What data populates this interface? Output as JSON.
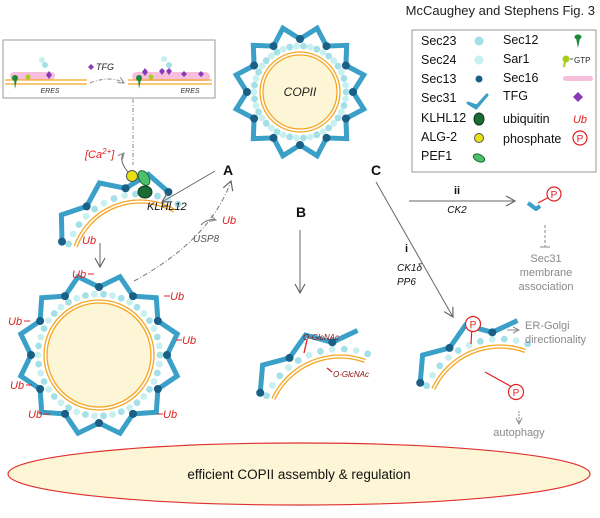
{
  "title": "McCaughey and Stephens Fig. 3",
  "legend": {
    "left": [
      {
        "label": "Sec23",
        "icon": "light-cyan-dot"
      },
      {
        "label": "Sec24",
        "icon": "pale-cyan-dot"
      },
      {
        "label": "Sec13",
        "icon": "dark-blue-dot"
      },
      {
        "label": "Sec31",
        "icon": "blue-check-shape"
      },
      {
        "label": "KLHL12",
        "icon": "dark-green-oval"
      },
      {
        "label": "ALG-2",
        "icon": "yellow-circle"
      },
      {
        "label": "PEF1",
        "icon": "green-ellipse"
      }
    ],
    "right": [
      {
        "label": "Sec12",
        "icon": "green-pin"
      },
      {
        "label": "Sar1",
        "icon": "lime-pin",
        "extra": "GTP"
      },
      {
        "label": "Sec16",
        "icon": "pink-bar"
      },
      {
        "label": "TFG",
        "icon": "purple-diamond"
      },
      {
        "label": "ubiquitin",
        "symbol": "Ub"
      },
      {
        "label": "phosphate",
        "symbol": "P"
      }
    ]
  },
  "inset": {
    "tfg": "TFG",
    "eres_left": "ERES",
    "eres_right": "ERES"
  },
  "labels": {
    "A": "A",
    "B": "B",
    "C": "C",
    "copii": "COPII",
    "ca": "[Ca2+]",
    "ca_base": "[Ca",
    "ca_sup": "2+",
    "ca_end": "]",
    "klhl12": "KLHL12",
    "ub_arrow": "Ub",
    "ub_release": "Ub",
    "usp8": "USP8",
    "ub_list": [
      "Ub",
      "Ub",
      "Ub",
      "Ub",
      "Ub",
      "Ub",
      "Ub"
    ],
    "oglcnac1": "O-GlcNAc",
    "oglcnac2": "O-GlcNAc",
    "ii": "ii",
    "ck2": "CK2",
    "i": "i",
    "ck1d": "CK1δ",
    "pp6": "PP6",
    "p": "P",
    "sec31_assoc": [
      "Sec31",
      "membrane",
      "association"
    ],
    "er_golgi": [
      "ER-Golgi",
      "directionality"
    ],
    "autophagy": "autophagy",
    "bottom": "efficient COPII assembly & regulation"
  },
  "colors": {
    "coat": "#3aa0c8",
    "sec13": "#1a5f86",
    "sec23": "#a4e0e8",
    "membrane": "#f5a623",
    "ub": "#e02020",
    "lumen": "#fdf6d6",
    "arrow": "#666666"
  }
}
